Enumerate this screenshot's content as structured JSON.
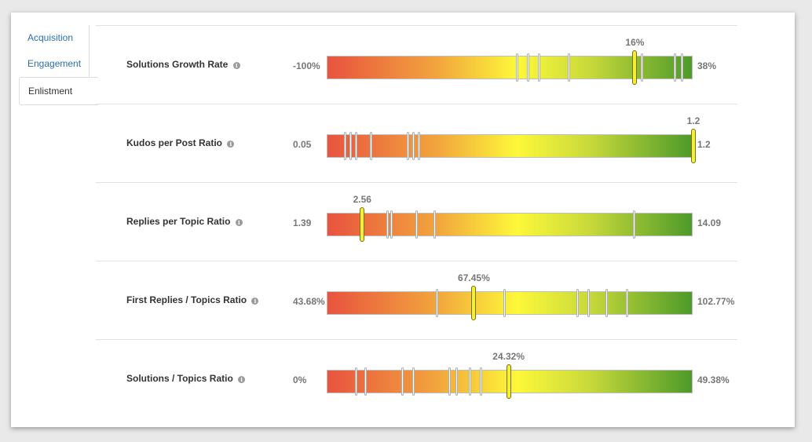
{
  "tabs": [
    {
      "label": "Acquisition",
      "active": false
    },
    {
      "label": "Engagement",
      "active": false
    },
    {
      "label": "Enlistment",
      "active": true
    }
  ],
  "colors": {
    "link": "#2d6fb3",
    "gradient_low": "#e9533f",
    "gradient_mid": "#fdf83a",
    "gradient_high": "#4e9a2a",
    "marker": "#f7ef2f"
  },
  "info_icon": "info-icon",
  "metrics": [
    {
      "label": "Solutions Growth Rate",
      "min": "-100%",
      "max": "38%",
      "value_label": "16%",
      "value_pos": 0.84,
      "ticks": [
        0.52,
        0.55,
        0.58,
        0.66,
        0.86,
        0.95,
        0.97
      ]
    },
    {
      "label": "Kudos per Post Ratio",
      "min": "0.05",
      "max": "1.2",
      "value_label": "1.2",
      "value_pos": 1.0,
      "ticks": [
        0.05,
        0.065,
        0.08,
        0.12,
        0.22,
        0.235,
        0.25
      ]
    },
    {
      "label": "Replies per Topic Ratio",
      "min": "1.39",
      "max": "14.09",
      "value_label": "2.56",
      "value_pos": 0.095,
      "ticks": [
        0.095,
        0.165,
        0.175,
        0.245,
        0.295,
        0.84
      ]
    },
    {
      "label": "First Replies / Topics Ratio",
      "min": "43.68%",
      "max": "102.77%",
      "value_label": "67.45%",
      "value_pos": 0.4,
      "ticks": [
        0.3,
        0.485,
        0.685,
        0.715,
        0.765,
        0.82
      ]
    },
    {
      "label": "Solutions / Topics Ratio",
      "min": "0%",
      "max": "49.38%",
      "value_label": "24.32%",
      "value_pos": 0.495,
      "ticks": [
        0.08,
        0.105,
        0.205,
        0.235,
        0.335,
        0.355,
        0.39,
        0.42
      ]
    }
  ]
}
